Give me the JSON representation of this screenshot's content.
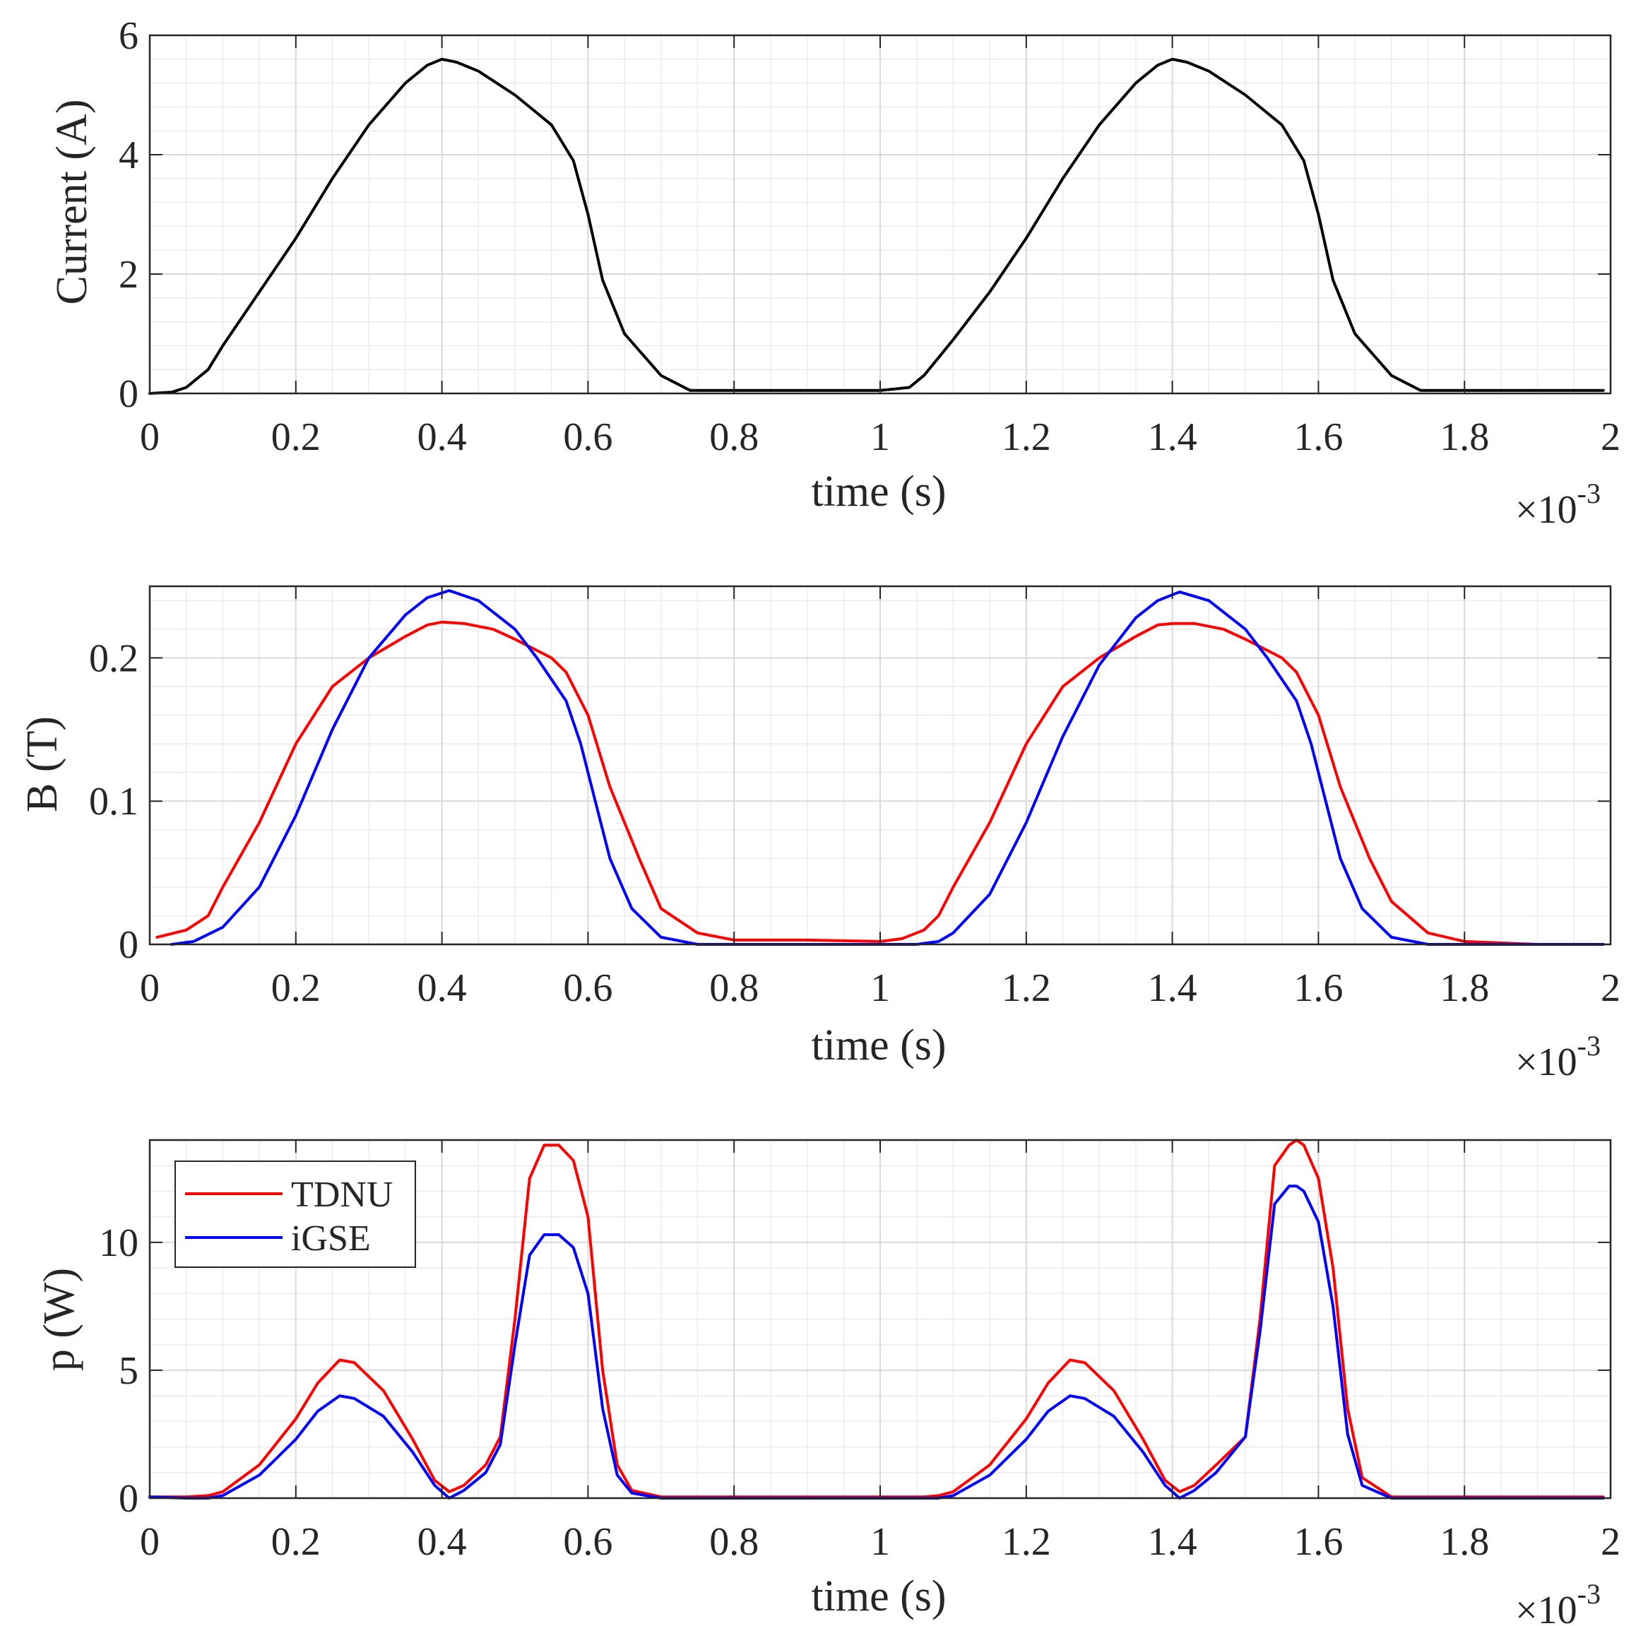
{
  "chart_data": [
    {
      "type": "line",
      "title": "",
      "xlabel": "time (s)",
      "ylabel": "Current (A)",
      "x_exponent_label": "×10",
      "x_exponent_power": "-3",
      "xlim": [
        0,
        2
      ],
      "ylim": [
        0,
        6
      ],
      "xticks": [
        0,
        0.2,
        0.4,
        0.6,
        0.8,
        1,
        1.2,
        1.4,
        1.6,
        1.8,
        2
      ],
      "xtick_labels": [
        "0",
        "0.2",
        "0.4",
        "0.6",
        "0.8",
        "1",
        "1.2",
        "1.4",
        "1.6",
        "1.8",
        "2"
      ],
      "yticks": [
        0,
        2,
        4,
        6
      ],
      "ytick_labels": [
        "0",
        "2",
        "4",
        "6"
      ],
      "grid": true,
      "minor_grid": true,
      "series": [
        {
          "name": "Current",
          "color": "#000000",
          "x": [
            0,
            0.03,
            0.05,
            0.08,
            0.1,
            0.15,
            0.2,
            0.25,
            0.3,
            0.35,
            0.38,
            0.4,
            0.42,
            0.45,
            0.5,
            0.55,
            0.58,
            0.6,
            0.62,
            0.65,
            0.7,
            0.74,
            0.8,
            1.0,
            1.04,
            1.06,
            1.08,
            1.1,
            1.15,
            1.2,
            1.25,
            1.3,
            1.35,
            1.38,
            1.4,
            1.42,
            1.45,
            1.5,
            1.55,
            1.58,
            1.6,
            1.62,
            1.65,
            1.7,
            1.74,
            1.8,
            1.99
          ],
          "y": [
            0,
            0.02,
            0.1,
            0.4,
            0.8,
            1.7,
            2.6,
            3.6,
            4.5,
            5.2,
            5.5,
            5.6,
            5.55,
            5.4,
            5.0,
            4.5,
            3.9,
            3.0,
            1.9,
            1.0,
            0.3,
            0.05,
            0.05,
            0.05,
            0.1,
            0.3,
            0.6,
            0.9,
            1.7,
            2.6,
            3.6,
            4.5,
            5.2,
            5.5,
            5.6,
            5.55,
            5.4,
            5.0,
            4.5,
            3.9,
            3.0,
            1.9,
            1.0,
            0.3,
            0.05,
            0.05,
            0.05
          ]
        }
      ]
    },
    {
      "type": "line",
      "title": "",
      "xlabel": "time (s)",
      "ylabel": "B (T)",
      "x_exponent_label": "×10",
      "x_exponent_power": "-3",
      "xlim": [
        0,
        2
      ],
      "ylim": [
        0,
        0.25
      ],
      "xticks": [
        0,
        0.2,
        0.4,
        0.6,
        0.8,
        1,
        1.2,
        1.4,
        1.6,
        1.8,
        2
      ],
      "xtick_labels": [
        "0",
        "0.2",
        "0.4",
        "0.6",
        "0.8",
        "1",
        "1.2",
        "1.4",
        "1.6",
        "1.8",
        "2"
      ],
      "yticks": [
        0,
        0.1,
        0.2
      ],
      "ytick_labels": [
        "0",
        "0.1",
        "0.2"
      ],
      "grid": true,
      "minor_grid": true,
      "series": [
        {
          "name": "TDNU",
          "color": "#ff0000",
          "x": [
            0.01,
            0.05,
            0.08,
            0.1,
            0.15,
            0.2,
            0.25,
            0.3,
            0.35,
            0.38,
            0.4,
            0.43,
            0.47,
            0.5,
            0.55,
            0.57,
            0.6,
            0.63,
            0.67,
            0.7,
            0.75,
            0.8,
            0.9,
            1.0,
            1.03,
            1.06,
            1.08,
            1.1,
            1.15,
            1.2,
            1.25,
            1.3,
            1.35,
            1.38,
            1.4,
            1.43,
            1.47,
            1.5,
            1.55,
            1.57,
            1.6,
            1.63,
            1.67,
            1.7,
            1.75,
            1.8,
            1.9,
            1.99
          ],
          "y": [
            0.005,
            0.01,
            0.02,
            0.04,
            0.085,
            0.14,
            0.18,
            0.2,
            0.215,
            0.223,
            0.225,
            0.224,
            0.22,
            0.213,
            0.2,
            0.19,
            0.16,
            0.11,
            0.06,
            0.025,
            0.008,
            0.003,
            0.003,
            0.002,
            0.004,
            0.01,
            0.02,
            0.04,
            0.085,
            0.14,
            0.18,
            0.2,
            0.215,
            0.223,
            0.224,
            0.224,
            0.22,
            0.213,
            0.2,
            0.19,
            0.16,
            0.11,
            0.06,
            0.03,
            0.008,
            0.002,
            0.0,
            0.0
          ]
        },
        {
          "name": "iGSE",
          "color": "#0000ff",
          "x": [
            0.03,
            0.06,
            0.1,
            0.15,
            0.2,
            0.25,
            0.3,
            0.35,
            0.38,
            0.41,
            0.45,
            0.5,
            0.53,
            0.57,
            0.59,
            0.61,
            0.63,
            0.66,
            0.7,
            0.75,
            0.8,
            1.0,
            1.05,
            1.08,
            1.1,
            1.15,
            1.2,
            1.25,
            1.3,
            1.35,
            1.38,
            1.41,
            1.45,
            1.5,
            1.53,
            1.57,
            1.59,
            1.61,
            1.63,
            1.66,
            1.7,
            1.75,
            1.8,
            1.99
          ],
          "y": [
            0.0,
            0.002,
            0.012,
            0.04,
            0.09,
            0.15,
            0.2,
            0.23,
            0.242,
            0.247,
            0.24,
            0.22,
            0.2,
            0.17,
            0.14,
            0.1,
            0.06,
            0.025,
            0.005,
            0.0,
            0.0,
            0.0,
            0.0,
            0.002,
            0.008,
            0.035,
            0.085,
            0.145,
            0.195,
            0.228,
            0.24,
            0.246,
            0.24,
            0.22,
            0.2,
            0.17,
            0.14,
            0.1,
            0.06,
            0.025,
            0.005,
            0.0,
            0.0,
            0.0
          ]
        }
      ]
    },
    {
      "type": "line",
      "title": "",
      "xlabel": "time (s)",
      "ylabel": "p (W)",
      "x_exponent_label": "×10",
      "x_exponent_power": "-3",
      "xlim": [
        0,
        2
      ],
      "ylim": [
        0,
        14
      ],
      "xticks": [
        0,
        0.2,
        0.4,
        0.6,
        0.8,
        1,
        1.2,
        1.4,
        1.6,
        1.8,
        2
      ],
      "xtick_labels": [
        "0",
        "0.2",
        "0.4",
        "0.6",
        "0.8",
        "1",
        "1.2",
        "1.4",
        "1.6",
        "1.8",
        "2"
      ],
      "yticks": [
        0,
        5,
        10
      ],
      "ytick_labels": [
        "0",
        "5",
        "10"
      ],
      "grid": true,
      "minor_grid": true,
      "legend": {
        "position": "top-left",
        "entries": [
          "TDNU",
          "iGSE"
        ]
      },
      "series": [
        {
          "name": "TDNU",
          "color": "#ff0000",
          "x": [
            0,
            0.05,
            0.08,
            0.1,
            0.15,
            0.2,
            0.23,
            0.26,
            0.28,
            0.32,
            0.36,
            0.39,
            0.41,
            0.43,
            0.46,
            0.48,
            0.5,
            0.52,
            0.54,
            0.56,
            0.58,
            0.6,
            0.62,
            0.64,
            0.66,
            0.7,
            0.8,
            1.0,
            1.06,
            1.08,
            1.1,
            1.15,
            1.2,
            1.23,
            1.26,
            1.28,
            1.32,
            1.36,
            1.39,
            1.41,
            1.43,
            1.46,
            1.5,
            1.52,
            1.54,
            1.56,
            1.57,
            1.58,
            1.6,
            1.62,
            1.64,
            1.66,
            1.7,
            1.8,
            1.99
          ],
          "y": [
            0.05,
            0.05,
            0.1,
            0.25,
            1.3,
            3.1,
            4.5,
            5.4,
            5.3,
            4.2,
            2.3,
            0.7,
            0.25,
            0.5,
            1.3,
            2.4,
            7.0,
            12.5,
            13.8,
            13.8,
            13.2,
            11.0,
            5.0,
            1.3,
            0.3,
            0.05,
            0.05,
            0.05,
            0.05,
            0.1,
            0.25,
            1.3,
            3.1,
            4.5,
            5.4,
            5.3,
            4.2,
            2.3,
            0.7,
            0.25,
            0.5,
            1.3,
            2.4,
            7.0,
            13.0,
            13.8,
            14.0,
            13.8,
            12.5,
            9.0,
            3.5,
            0.8,
            0.05,
            0.05,
            0.05
          ]
        },
        {
          "name": "iGSE",
          "color": "#0000ff",
          "x": [
            0,
            0.05,
            0.08,
            0.1,
            0.15,
            0.2,
            0.23,
            0.26,
            0.28,
            0.32,
            0.36,
            0.39,
            0.41,
            0.43,
            0.46,
            0.48,
            0.5,
            0.52,
            0.54,
            0.56,
            0.58,
            0.6,
            0.62,
            0.64,
            0.66,
            0.7,
            0.8,
            1.0,
            1.06,
            1.08,
            1.1,
            1.15,
            1.2,
            1.23,
            1.26,
            1.28,
            1.32,
            1.36,
            1.39,
            1.41,
            1.43,
            1.46,
            1.5,
            1.52,
            1.54,
            1.56,
            1.57,
            1.58,
            1.6,
            1.62,
            1.64,
            1.66,
            1.7,
            1.8,
            1.99
          ],
          "y": [
            0.05,
            0.0,
            0.0,
            0.1,
            0.9,
            2.3,
            3.4,
            4.0,
            3.9,
            3.2,
            1.8,
            0.5,
            0.0,
            0.3,
            1.0,
            2.1,
            6.0,
            9.5,
            10.3,
            10.3,
            9.8,
            8.0,
            3.5,
            0.9,
            0.2,
            0.0,
            0.0,
            0.0,
            0.0,
            0.0,
            0.1,
            0.9,
            2.3,
            3.4,
            4.0,
            3.9,
            3.2,
            1.8,
            0.5,
            0.0,
            0.3,
            1.0,
            2.4,
            6.5,
            11.5,
            12.2,
            12.2,
            12.0,
            10.8,
            7.5,
            2.5,
            0.5,
            0.0,
            0.0,
            0.0
          ]
        }
      ]
    }
  ]
}
